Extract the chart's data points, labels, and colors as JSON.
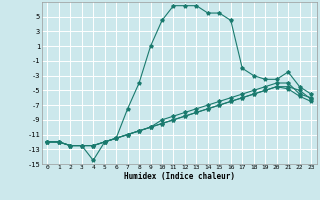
{
  "xlabel": "Humidex (Indice chaleur)",
  "xlim": [
    -0.5,
    23.5
  ],
  "ylim": [
    -15,
    7
  ],
  "yticks": [
    5,
    3,
    1,
    -1,
    -3,
    -5,
    -7,
    -9,
    -11,
    -13,
    -15
  ],
  "xticks": [
    0,
    1,
    2,
    3,
    4,
    5,
    6,
    7,
    8,
    9,
    10,
    11,
    12,
    13,
    14,
    15,
    16,
    17,
    18,
    19,
    20,
    21,
    22,
    23
  ],
  "background_color": "#cce8ec",
  "grid_color": "#ffffff",
  "line_color": "#1a7a6e",
  "series": [
    {
      "x": [
        0,
        1,
        2,
        3,
        4,
        5,
        6,
        7,
        8,
        9,
        10,
        11,
        12,
        13,
        14,
        15,
        16,
        17,
        18,
        19,
        20,
        21,
        22,
        23
      ],
      "y": [
        -12,
        -12,
        -12.5,
        -12.5,
        -14.5,
        -12,
        -11.5,
        -7.5,
        -4,
        1,
        4.5,
        6.5,
        6.5,
        6.5,
        5.5,
        5.5,
        4.5,
        -2,
        -3,
        -3.5,
        -3.5,
        -2.5,
        -4.5,
        -5.5
      ]
    },
    {
      "x": [
        0,
        1,
        2,
        3,
        4,
        5,
        6,
        7,
        8,
        9,
        10,
        11,
        12,
        13,
        14,
        15,
        16,
        17,
        18,
        19,
        20,
        21,
        22,
        23
      ],
      "y": [
        -12,
        -12,
        -12.5,
        -12.5,
        -12.5,
        -12,
        -11.5,
        -11,
        -10.5,
        -10,
        -9,
        -8.5,
        -8,
        -7.5,
        -7,
        -6.5,
        -6,
        -5.5,
        -5,
        -4.5,
        -4,
        -4,
        -5.5,
        -6
      ]
    },
    {
      "x": [
        0,
        1,
        2,
        3,
        4,
        5,
        6,
        7,
        8,
        9,
        10,
        11,
        12,
        13,
        14,
        15,
        16,
        17,
        18,
        19,
        20,
        21,
        22,
        23
      ],
      "y": [
        -12,
        -12,
        -12.5,
        -12.5,
        -12.5,
        -12,
        -11.5,
        -11,
        -10.5,
        -10,
        -9.5,
        -9,
        -8.5,
        -8,
        -7.5,
        -7,
        -6.5,
        -6,
        -5.5,
        -5,
        -4.5,
        -4.5,
        -5.0,
        -6.2
      ]
    },
    {
      "x": [
        0,
        1,
        2,
        3,
        4,
        5,
        6,
        7,
        8,
        9,
        10,
        11,
        12,
        13,
        14,
        15,
        16,
        17,
        18,
        19,
        20,
        21,
        22,
        23
      ],
      "y": [
        -12,
        -12,
        -12.5,
        -12.5,
        -12.5,
        -12,
        -11.5,
        -11,
        -10.5,
        -10,
        -9.5,
        -9,
        -8.5,
        -8,
        -7.5,
        -7,
        -6.5,
        -6,
        -5.5,
        -5,
        -4.5,
        -4.8,
        -5.8,
        -6.5
      ]
    }
  ]
}
